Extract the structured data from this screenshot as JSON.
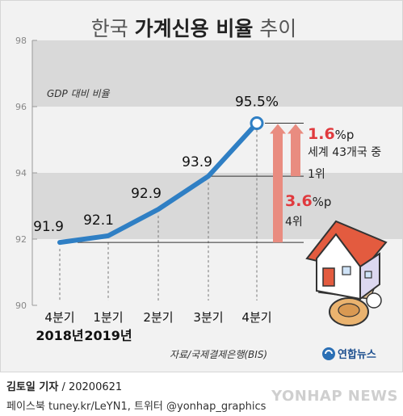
{
  "title": {
    "normal_1": "한국 ",
    "bold": "가계신용 비율",
    "normal_2": " 추이"
  },
  "colors": {
    "line": "#2f7fc4",
    "band": "#d9d9d9",
    "red": "#e03a3e",
    "arrow": "#e98c80"
  },
  "chart_data": {
    "type": "line",
    "title": "한국 가계신용 비율 추이",
    "unit_label": "GDP 대비 비율",
    "x_labels": [
      "4분기",
      "1분기",
      "2분기",
      "3분기",
      "4분기"
    ],
    "year_labels": [
      "2018년",
      "2019년"
    ],
    "values": [
      91.9,
      92.1,
      92.9,
      93.9,
      95.5
    ],
    "value_labels": [
      "91.9",
      "92.1",
      "92.9",
      "93.9",
      "95.5%"
    ],
    "ylim": [
      90,
      98
    ],
    "yticks": [
      90,
      92,
      94,
      96,
      98
    ],
    "annotations": {
      "a1_value": "1.6",
      "a1_unit": "%p",
      "a1_text1": "세계 43개국 중",
      "a1_text2": "1위",
      "a2_value": "3.6",
      "a2_unit": "%p",
      "a2_text": "4위"
    }
  },
  "source": "자료/국제결제은행(BIS)",
  "logo_text": "연합뉴스",
  "footer": {
    "reporter": "김토일 기자",
    "date": "20200621",
    "sns": "페이스북 tuney.kr/LeYN1, 트위터 @yonhap_graphics"
  },
  "watermark": "YONHAP NEWS"
}
